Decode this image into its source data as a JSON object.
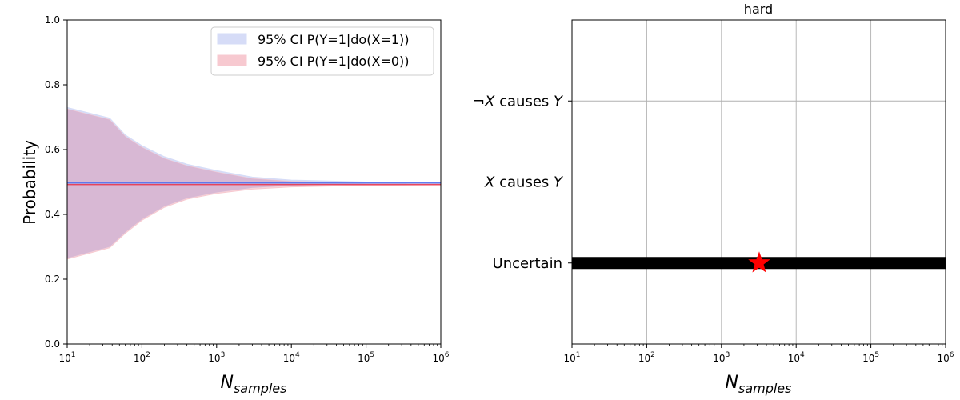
{
  "chart_data": [
    {
      "type": "area",
      "title": "",
      "ylabel": "Probability",
      "xlabel_main": "N",
      "xlabel_sub": "samples",
      "xscale": "log",
      "xlim": [
        10,
        1000000
      ],
      "ylim": [
        0,
        1.0
      ],
      "x_ticks": [
        {
          "base": "10",
          "exp": "1"
        },
        {
          "base": "10",
          "exp": "2"
        },
        {
          "base": "10",
          "exp": "3"
        },
        {
          "base": "10",
          "exp": "4"
        },
        {
          "base": "10",
          "exp": "5"
        },
        {
          "base": "10",
          "exp": "6"
        }
      ],
      "y_ticks": [
        "0.0",
        "0.2",
        "0.4",
        "0.6",
        "0.8",
        "1.0"
      ],
      "legend_position": "top-right",
      "series": [
        {
          "name": "95% CI P(Y=1|do(X=1))",
          "color": "#4f6ff0",
          "fill_color": "#d6dcf7",
          "estimate": 0.497,
          "x": [
            10,
            37,
            60,
            100,
            200,
            400,
            1000,
            3000,
            10000,
            100000,
            1000000
          ],
          "lower": [
            0.265,
            0.3,
            0.345,
            0.385,
            0.425,
            0.45,
            0.468,
            0.482,
            0.489,
            0.494,
            0.495
          ],
          "upper": [
            0.73,
            0.697,
            0.645,
            0.612,
            0.578,
            0.555,
            0.535,
            0.515,
            0.506,
            0.5,
            0.499
          ]
        },
        {
          "name": "95% CI P(Y=1|do(X=0))",
          "color": "#e8334a",
          "fill_color": "#f7c9d0",
          "estimate": 0.492,
          "x": [
            10,
            37,
            60,
            100,
            200,
            400,
            1000,
            3000,
            10000,
            100000,
            1000000
          ],
          "lower": [
            0.262,
            0.297,
            0.342,
            0.382,
            0.422,
            0.447,
            0.465,
            0.478,
            0.485,
            0.49,
            0.491
          ],
          "upper": [
            0.725,
            0.692,
            0.64,
            0.607,
            0.572,
            0.55,
            0.53,
            0.51,
            0.502,
            0.496,
            0.494
          ]
        }
      ]
    },
    {
      "type": "scatter",
      "title": "hard",
      "xlabel_main": "N",
      "xlabel_sub": "samples",
      "xscale": "log",
      "xlim": [
        10,
        1000000
      ],
      "x_ticks": [
        {
          "base": "10",
          "exp": "1"
        },
        {
          "base": "10",
          "exp": "2"
        },
        {
          "base": "10",
          "exp": "3"
        },
        {
          "base": "10",
          "exp": "4"
        },
        {
          "base": "10",
          "exp": "5"
        },
        {
          "base": "10",
          "exp": "6"
        }
      ],
      "y_categories": [
        {
          "prefix": "¬",
          "var1": "X",
          "mid": " causes ",
          "var2": "Y"
        },
        {
          "prefix": "",
          "var1": "X",
          "mid": " causes ",
          "var2": "Y"
        },
        {
          "prefix": "Uncertain",
          "var1": "",
          "mid": "",
          "var2": ""
        }
      ],
      "grid": true,
      "decision_line": {
        "category": "Uncertain",
        "x_start": 10,
        "x_end": 1000000,
        "color": "#000000"
      },
      "marker": {
        "category": "Uncertain",
        "x": 3200,
        "shape": "star",
        "color": "#ff0000"
      }
    }
  ]
}
